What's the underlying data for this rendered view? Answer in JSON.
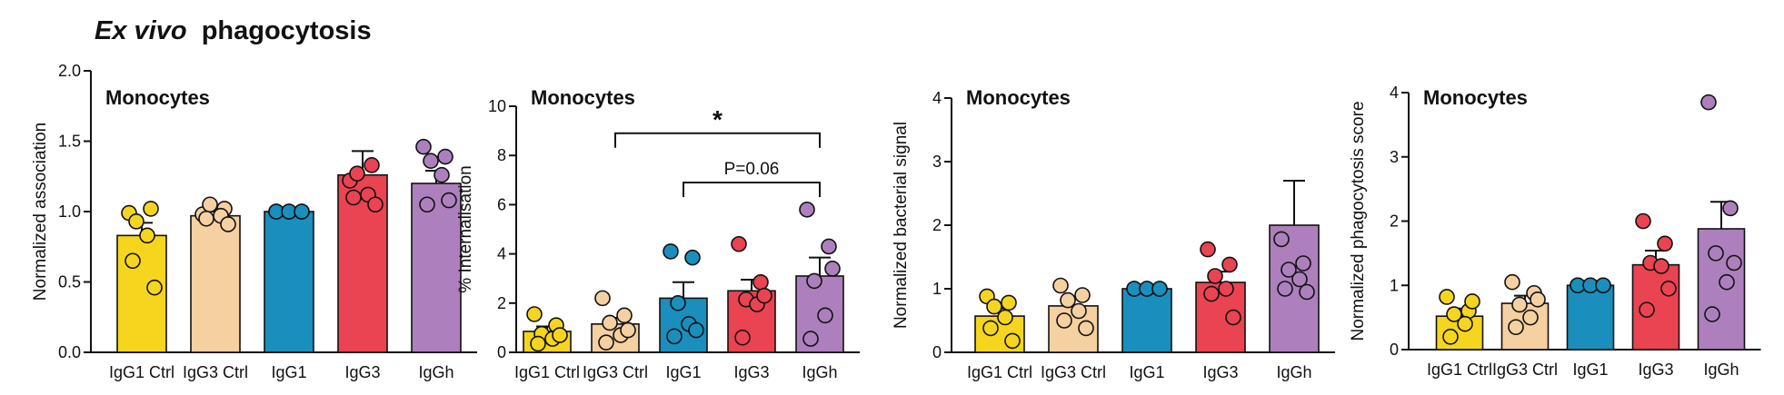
{
  "figure": {
    "title_italic": "Ex vivo",
    "title_rest": "phagocytosis"
  },
  "chart_data": [
    {
      "type": "bar",
      "title": "Monocytes",
      "ylabel": "Normalized association",
      "categories": [
        "IgG1 Ctrl",
        "IgG3 Ctrl",
        "IgG1",
        "IgG3",
        "IgGh"
      ],
      "colors": [
        "#f5d51e",
        "#f5d0a0",
        "#1a8fbd",
        "#ea4351",
        "#ad80bd"
      ],
      "ylim": [
        0,
        2.0
      ],
      "yticks": [
        0.0,
        0.5,
        1.0,
        1.5,
        2.0
      ],
      "ytick_labels": [
        "0.0",
        "0.5",
        "1.0",
        "1.5",
        "2.0"
      ],
      "values": [
        0.83,
        0.97,
        1.0,
        1.26,
        1.2
      ],
      "errors": [
        0.09,
        0.03,
        0.0,
        0.17,
        0.09
      ],
      "points": [
        [
          0.99,
          1.02,
          0.93,
          0.83,
          0.65,
          0.46
        ],
        [
          0.98,
          1.02,
          1.05,
          0.97,
          0.95,
          0.91
        ],
        [
          1.0,
          1.0,
          1.0,
          1.0,
          1.0,
          1.0
        ],
        [
          1.22,
          1.33,
          1.27,
          1.12,
          1.1,
          1.05
        ],
        [
          1.46,
          1.39,
          1.36,
          1.26,
          1.05,
          1.08
        ]
      ],
      "annotations": []
    },
    {
      "type": "bar",
      "title": "Monocytes",
      "ylabel": "% Internalisation",
      "categories": [
        "IgG1 Ctrl",
        "IgG3 Ctrl",
        "IgG1",
        "IgG3",
        "IgGh"
      ],
      "colors": [
        "#f5d51e",
        "#f5d0a0",
        "#1a8fbd",
        "#ea4351",
        "#ad80bd"
      ],
      "ylim": [
        0,
        10
      ],
      "yticks": [
        0,
        2,
        4,
        6,
        8,
        10
      ],
      "ytick_labels": [
        "0",
        "2",
        "4",
        "6",
        "8",
        "10"
      ],
      "values": [
        0.85,
        1.15,
        2.2,
        2.5,
        3.1
      ],
      "errors": [
        0.2,
        0.25,
        0.65,
        0.45,
        0.75
      ],
      "points": [
        [
          1.55,
          1.1,
          0.75,
          0.55,
          0.35,
          0.7
        ],
        [
          2.2,
          1.5,
          1.2,
          0.7,
          0.4,
          0.9
        ],
        [
          4.1,
          3.85,
          2.0,
          1.15,
          0.65,
          0.9
        ],
        [
          4.4,
          2.85,
          2.15,
          1.95,
          0.6,
          2.3
        ],
        [
          5.8,
          4.3,
          2.9,
          1.5,
          0.55,
          3.4
        ]
      ],
      "annotations": [
        {
          "label": "*",
          "from": 1,
          "to": 4,
          "y": 8.9
        },
        {
          "label": "P=0.06",
          "from": 2,
          "to": 4,
          "y": 6.9
        }
      ]
    },
    {
      "type": "bar",
      "title": "Monocytes",
      "ylabel": "Normalized bacterial signal",
      "categories": [
        "IgG1 Ctrl",
        "IgG3 Ctrl",
        "IgG1",
        "IgG3",
        "IgGh"
      ],
      "colors": [
        "#f5d51e",
        "#f5d0a0",
        "#1a8fbd",
        "#ea4351",
        "#ad80bd"
      ],
      "ylim": [
        0,
        4
      ],
      "yticks": [
        0,
        1,
        2,
        3,
        4
      ],
      "ytick_labels": [
        "0",
        "1",
        "2",
        "3",
        "4"
      ],
      "values": [
        0.57,
        0.73,
        1.0,
        1.1,
        2.0
      ],
      "errors": [
        0.12,
        0.11,
        0.0,
        0.17,
        0.7
      ],
      "points": [
        [
          0.88,
          0.78,
          0.72,
          0.55,
          0.38,
          0.18
        ],
        [
          1.05,
          0.9,
          0.82,
          0.65,
          0.5,
          0.38
        ],
        [
          1.0,
          1.0,
          1.0,
          1.0,
          1.0,
          1.0
        ],
        [
          1.62,
          1.38,
          1.2,
          1.0,
          0.92,
          0.55
        ],
        [
          1.78,
          1.4,
          1.3,
          1.15,
          1.0,
          0.95
        ]
      ],
      "annotations": []
    },
    {
      "type": "bar",
      "title": "Monocytes",
      "ylabel": "Normalized phagocytosis score",
      "categories": [
        "IgG1 Ctrl",
        "IgG3 Ctrl",
        "IgG1",
        "IgG3",
        "IgGh"
      ],
      "colors": [
        "#f5d51e",
        "#f5d0a0",
        "#1a8fbd",
        "#ea4351",
        "#ad80bd"
      ],
      "ylim": [
        0,
        4
      ],
      "yticks": [
        0,
        1,
        2,
        3,
        4
      ],
      "ytick_labels": [
        "0",
        "1",
        "2",
        "3",
        "4"
      ],
      "values": [
        0.52,
        0.72,
        1.0,
        1.32,
        1.88
      ],
      "errors": [
        0.12,
        0.12,
        0.0,
        0.22,
        0.42
      ],
      "points": [
        [
          0.82,
          0.6,
          0.55,
          0.4,
          0.2,
          0.75
        ],
        [
          1.05,
          0.88,
          0.7,
          0.5,
          0.35,
          0.78
        ],
        [
          1.0,
          1.0,
          1.0,
          1.0,
          1.0,
          1.0
        ],
        [
          2.0,
          1.65,
          1.35,
          1.3,
          0.62,
          0.95
        ],
        [
          3.85,
          2.2,
          1.5,
          1.05,
          0.55,
          1.35
        ]
      ],
      "annotations": []
    }
  ]
}
